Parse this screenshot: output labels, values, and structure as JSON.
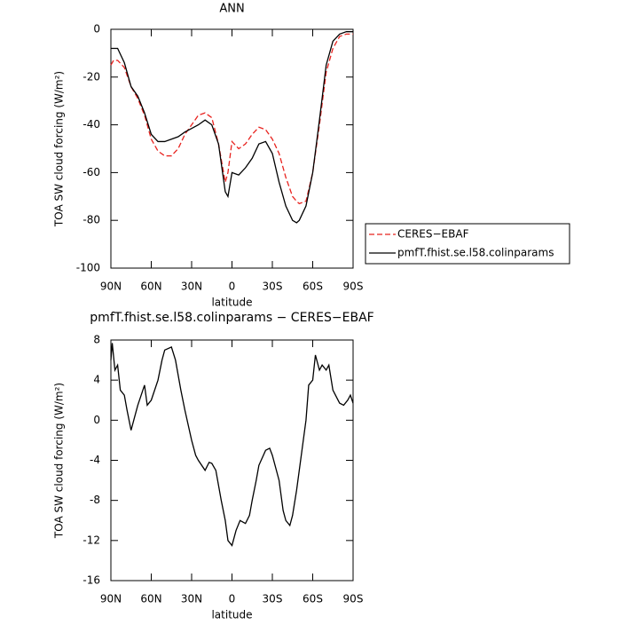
{
  "chart_data": [
    {
      "type": "line",
      "title": "ANN",
      "xlabel": "latitude",
      "ylabel": "TOA SW cloud forcing (W/m²)",
      "xlim": [
        90,
        -90
      ],
      "ylim": [
        -100,
        0
      ],
      "xticks": [
        {
          "value": 90,
          "label": "90N"
        },
        {
          "value": 60,
          "label": "60N"
        },
        {
          "value": 30,
          "label": "30N"
        },
        {
          "value": 0,
          "label": "0"
        },
        {
          "value": -30,
          "label": "30S"
        },
        {
          "value": -60,
          "label": "60S"
        },
        {
          "value": -90,
          "label": "90S"
        }
      ],
      "yticks": [
        -100,
        -80,
        -60,
        -40,
        -20,
        0
      ],
      "legend": "right",
      "x": [
        90,
        88,
        85,
        80,
        75,
        70,
        65,
        60,
        55,
        50,
        45,
        40,
        35,
        30,
        25,
        20,
        15,
        10,
        5,
        3,
        0,
        -5,
        -10,
        -15,
        -20,
        -25,
        -30,
        -35,
        -40,
        -45,
        -48,
        -50,
        -55,
        -60,
        -65,
        -70,
        -75,
        -80,
        -85,
        -90
      ],
      "series": [
        {
          "name": "CERES−EBAF",
          "color": "#e8231f",
          "dash": true,
          "values": [
            -15,
            -13,
            -13,
            -16,
            -24,
            -29,
            -36,
            -46,
            -51,
            -53,
            -53,
            -50,
            -44,
            -40,
            -36,
            -35,
            -37,
            -48,
            -64,
            -60,
            -47,
            -50,
            -48,
            -44,
            -41,
            -42,
            -46,
            -52,
            -62,
            -70,
            -72,
            -73,
            -72,
            -60,
            -40,
            -18,
            -8,
            -3,
            -2,
            -2
          ]
        },
        {
          "name": "pmfT.fhist.se.l58.colinparams",
          "color": "#000000",
          "dash": false,
          "values": [
            -8,
            -8,
            -8,
            -14,
            -24,
            -28,
            -35,
            -44,
            -47,
            -47,
            -46,
            -45,
            -43,
            -41.5,
            -40,
            -38,
            -40,
            -48,
            -68,
            -70,
            -60,
            -61,
            -58,
            -54,
            -48,
            -47,
            -52,
            -64,
            -74,
            -80,
            -81,
            -80,
            -74,
            -60,
            -38,
            -15,
            -5,
            -2,
            -1,
            -1
          ]
        }
      ]
    },
    {
      "type": "line",
      "title": "pmfT.fhist.se.l58.colinparams − CERES−EBAF",
      "xlabel": "latitude",
      "ylabel": "TOA SW cloud forcing (W/m²)",
      "xlim": [
        90,
        -90
      ],
      "ylim": [
        -16,
        8
      ],
      "xticks": [
        {
          "value": 90,
          "label": "90N"
        },
        {
          "value": 60,
          "label": "60N"
        },
        {
          "value": 30,
          "label": "30N"
        },
        {
          "value": 0,
          "label": "0"
        },
        {
          "value": -30,
          "label": "30S"
        },
        {
          "value": -60,
          "label": "60S"
        },
        {
          "value": -90,
          "label": "90S"
        }
      ],
      "yticks": [
        -16,
        -12,
        -8,
        -4,
        0,
        4,
        8
      ],
      "x": [
        90,
        89,
        87,
        85,
        83,
        80,
        78,
        75,
        73,
        70,
        65,
        63,
        60,
        55,
        52,
        50,
        45,
        42,
        38,
        35,
        30,
        27,
        25,
        20,
        17,
        15,
        12,
        8,
        5,
        3,
        0,
        -3,
        -6,
        -10,
        -13,
        -15,
        -18,
        -20,
        -25,
        -28,
        -30,
        -35,
        -38,
        -40,
        -43,
        -45,
        -48,
        -52,
        -55,
        -57,
        -60,
        -62,
        -65,
        -67,
        -70,
        -72,
        -75,
        -80,
        -83,
        -86,
        -88,
        -90
      ],
      "series": [
        {
          "color": "#000000",
          "values": [
            6,
            7.7,
            5,
            5.5,
            3,
            2.5,
            1,
            -1,
            0,
            1.5,
            3.5,
            1.5,
            2,
            4,
            6,
            7,
            7.3,
            6,
            3,
            1,
            -2,
            -3.5,
            -4,
            -5,
            -4.2,
            -4.3,
            -5,
            -8,
            -10,
            -12,
            -12.5,
            -11,
            -10,
            -10.3,
            -9.5,
            -8,
            -6,
            -4.5,
            -3,
            -2.8,
            -3.5,
            -6,
            -9,
            -10,
            -10.5,
            -9.5,
            -7,
            -3,
            0,
            3.5,
            4,
            6.5,
            5,
            5.5,
            5,
            5.5,
            3,
            1.7,
            1.5,
            2,
            2.5,
            1.7
          ]
        }
      ]
    }
  ]
}
